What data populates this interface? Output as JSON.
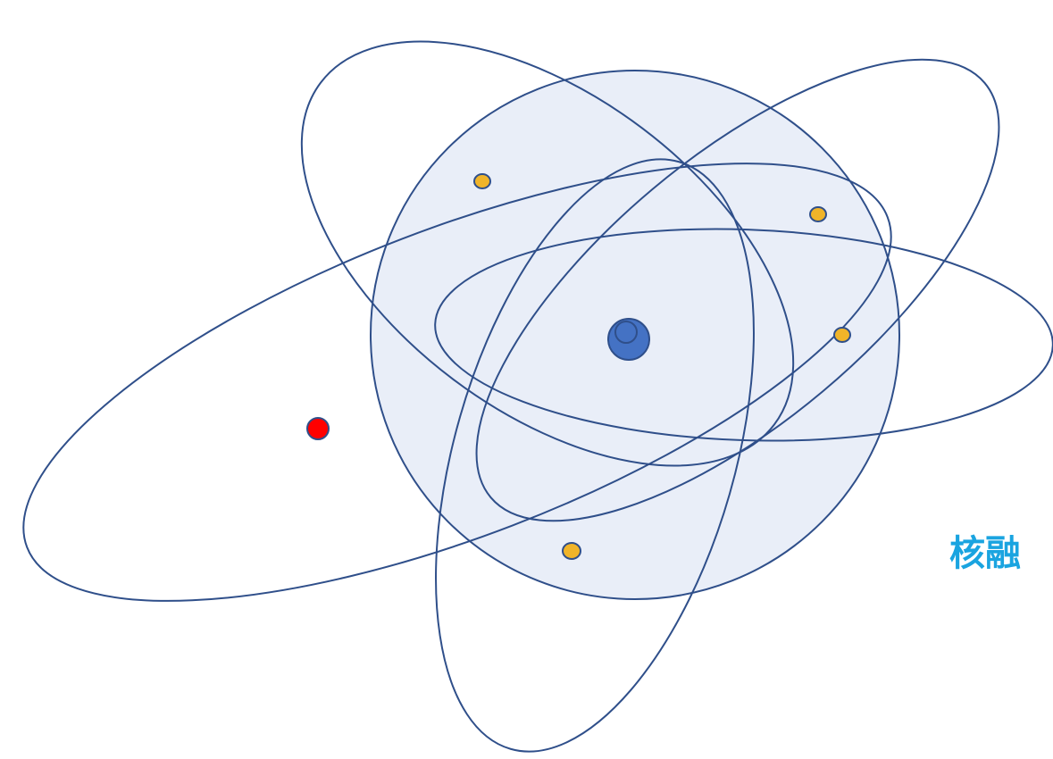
{
  "diagram": {
    "caption": "核融",
    "colors": {
      "orbit_stroke": "#2f4f8a",
      "sphere_fill": "#e9eef8",
      "sphere_stroke": "#2f4f8a",
      "nucleus_fill": "#4472c4",
      "nucleus_stroke": "#2f4f8a",
      "electron_fill": "#f0b429",
      "electron_stroke": "#2f4f8a",
      "highlight_particle_fill": "#ff0000",
      "caption_color": "#1aa4e0"
    },
    "electron_count": 4,
    "highlight_particle_count": 1,
    "orbit_count": 5
  }
}
